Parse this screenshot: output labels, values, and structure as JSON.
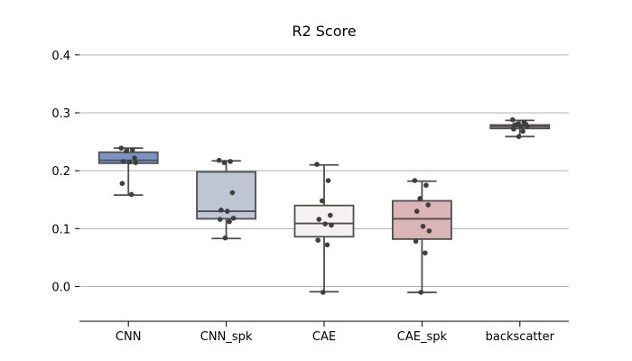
{
  "chart_data": {
    "type": "boxplot",
    "title": "R2 Score",
    "xlabel": "",
    "ylabel": "",
    "categories": [
      "CNN",
      "CNN_spk",
      "CAE",
      "CAE_spk",
      "backscatter"
    ],
    "ylim": [
      -0.06,
      0.42
    ],
    "yticks": [
      0.0,
      0.1,
      0.2,
      0.3,
      0.4
    ],
    "ytick_labels": [
      "0.0",
      "0.1",
      "0.2",
      "0.3",
      "0.4"
    ],
    "grid": "horizontal",
    "boxes": [
      {
        "name": "CNN",
        "color": "#7b93c4",
        "whisker_low": 0.158,
        "q1": 0.213,
        "median": 0.218,
        "q3": 0.232,
        "whisker_high": 0.239,
        "points": [
          0.239,
          0.236,
          0.234,
          0.222,
          0.216,
          0.215,
          0.214,
          0.178,
          0.159
        ]
      },
      {
        "name": "CNN_spk",
        "color": "#bec5d5",
        "whisker_low": 0.083,
        "q1": 0.117,
        "median": 0.13,
        "q3": 0.198,
        "whisker_high": 0.217,
        "points": [
          0.218,
          0.216,
          0.214,
          0.162,
          0.132,
          0.13,
          0.118,
          0.116,
          0.112,
          0.084
        ]
      },
      {
        "name": "CAE",
        "color": "#f5f1f0",
        "whisker_low": -0.009,
        "q1": 0.086,
        "median": 0.109,
        "q3": 0.14,
        "whisker_high": 0.21,
        "points": [
          0.211,
          0.183,
          0.148,
          0.123,
          0.116,
          0.108,
          0.106,
          0.08,
          0.072,
          -0.01
        ]
      },
      {
        "name": "CAE_spk",
        "color": "#dcb6b6",
        "whisker_low": -0.01,
        "q1": 0.082,
        "median": 0.117,
        "q3": 0.148,
        "whisker_high": 0.182,
        "points": [
          0.183,
          0.175,
          0.152,
          0.141,
          0.13,
          0.104,
          0.096,
          0.078,
          0.058,
          -0.01
        ]
      },
      {
        "name": "backscatter",
        "color": "#a07c78",
        "whisker_low": 0.259,
        "q1": 0.273,
        "median": 0.277,
        "q3": 0.279,
        "whisker_high": 0.287,
        "points": [
          0.288,
          0.284,
          0.281,
          0.28,
          0.279,
          0.277,
          0.276,
          0.272,
          0.268,
          0.259
        ]
      }
    ],
    "point_color": "#3f3f3f",
    "line_color": "#4f4f4f",
    "grid_color": "#b0b0b0"
  }
}
